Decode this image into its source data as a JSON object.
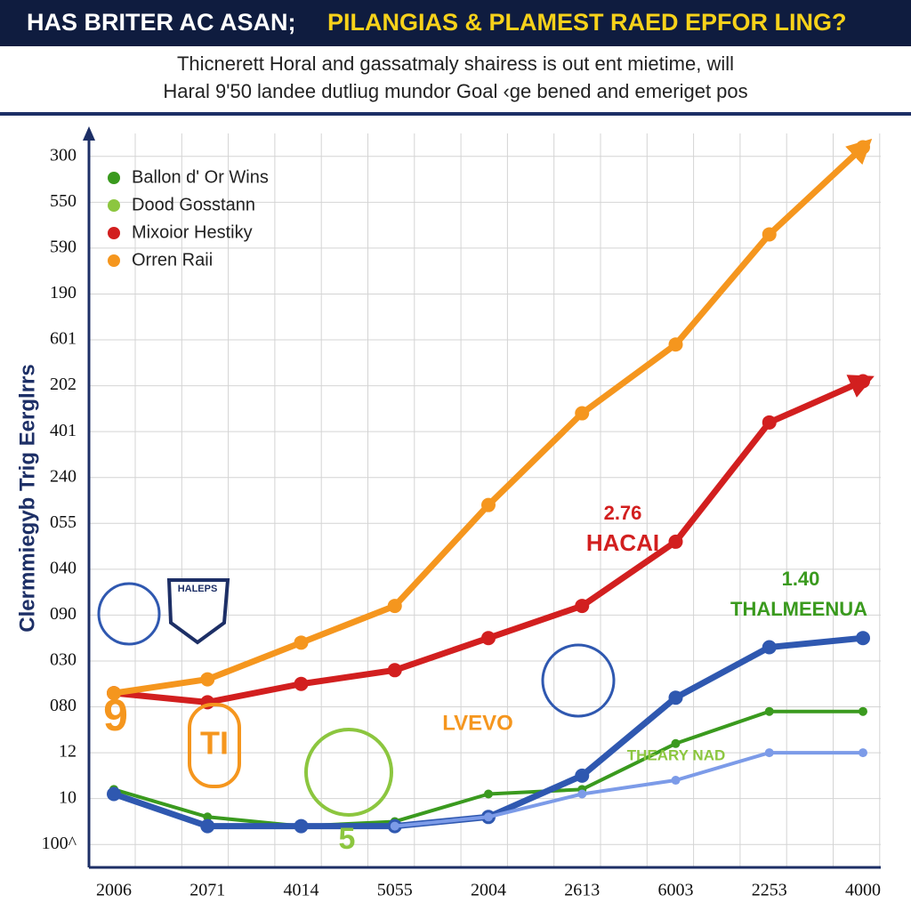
{
  "header": {
    "title_part1": "HAS BRITER AC ASAN;",
    "title_part2": "PILANGIAS & PLAMEST RAED EPFOR LING?",
    "subtitle_line1": "Thicnerett Horal and gassatmaly shairess is out ent mietime, will",
    "subtitle_line2": "Haral 9'50 landee dutliug mundor Goal ‹ge bened and emeriget pos"
  },
  "chart_data": {
    "type": "line",
    "y_label": "Clermmiegyb Trig Eerglrrs",
    "categories": [
      "2006",
      "2071",
      "4014",
      "5055",
      "2004",
      "2613",
      "6003",
      "2253",
      "4000"
    ],
    "ylim": [
      -0.5,
      15.5
    ],
    "yticks": [
      {
        "value": 0,
        "label": "100^"
      },
      {
        "value": 1,
        "label": "10"
      },
      {
        "value": 2,
        "label": "12"
      },
      {
        "value": 3,
        "label": "080"
      },
      {
        "value": 4,
        "label": "030"
      },
      {
        "value": 5,
        "label": "090"
      },
      {
        "value": 6,
        "label": "040"
      },
      {
        "value": 7,
        "label": "055"
      },
      {
        "value": 8,
        "label": "240"
      },
      {
        "value": 9,
        "label": "401"
      },
      {
        "value": 10,
        "label": "202"
      },
      {
        "value": 11,
        "label": "601"
      },
      {
        "value": 12,
        "label": "190"
      },
      {
        "value": 13,
        "label": "590"
      },
      {
        "value": 14,
        "label": "550"
      },
      {
        "value": 15,
        "label": "300"
      }
    ],
    "grid": true,
    "legend_position": "upper left",
    "series": [
      {
        "name": "Ballon d' Or Wins",
        "color": "#3a9a1e",
        "values": [
          1.2,
          0.6,
          0.4,
          0.5,
          1.1,
          1.2,
          2.2,
          2.9,
          2.9
        ]
      },
      {
        "name": "Dood Gosstann",
        "color": "#8cc63f",
        "values": [
          null,
          null,
          null,
          null,
          null,
          null,
          null,
          null,
          null
        ]
      },
      {
        "name": "Mixoior Hestiky",
        "color": "#d21f1f",
        "values": [
          3.3,
          3.1,
          3.5,
          3.8,
          4.5,
          5.2,
          6.6,
          9.2,
          10.1
        ]
      },
      {
        "name": "Orren Raii",
        "color": "#f5961e",
        "values": [
          3.3,
          3.6,
          4.4,
          5.2,
          7.4,
          9.4,
          10.9,
          13.3,
          15.2
        ]
      },
      {
        "color": "#2f58b0",
        "values": [
          1.1,
          0.4,
          0.4,
          0.4,
          0.6,
          1.5,
          3.2,
          4.3,
          4.5
        ]
      },
      {
        "color": "#7c9be8",
        "values": [
          null,
          null,
          null,
          0.4,
          0.6,
          1.1,
          1.4,
          2.0,
          2.0
        ]
      }
    ],
    "annotations": [
      "2.76",
      "HACAI",
      "1.40",
      "THALMEENUA",
      "LVEVO",
      "THEARY NAD",
      "9",
      "TI",
      "5",
      "HALEPS"
    ]
  }
}
